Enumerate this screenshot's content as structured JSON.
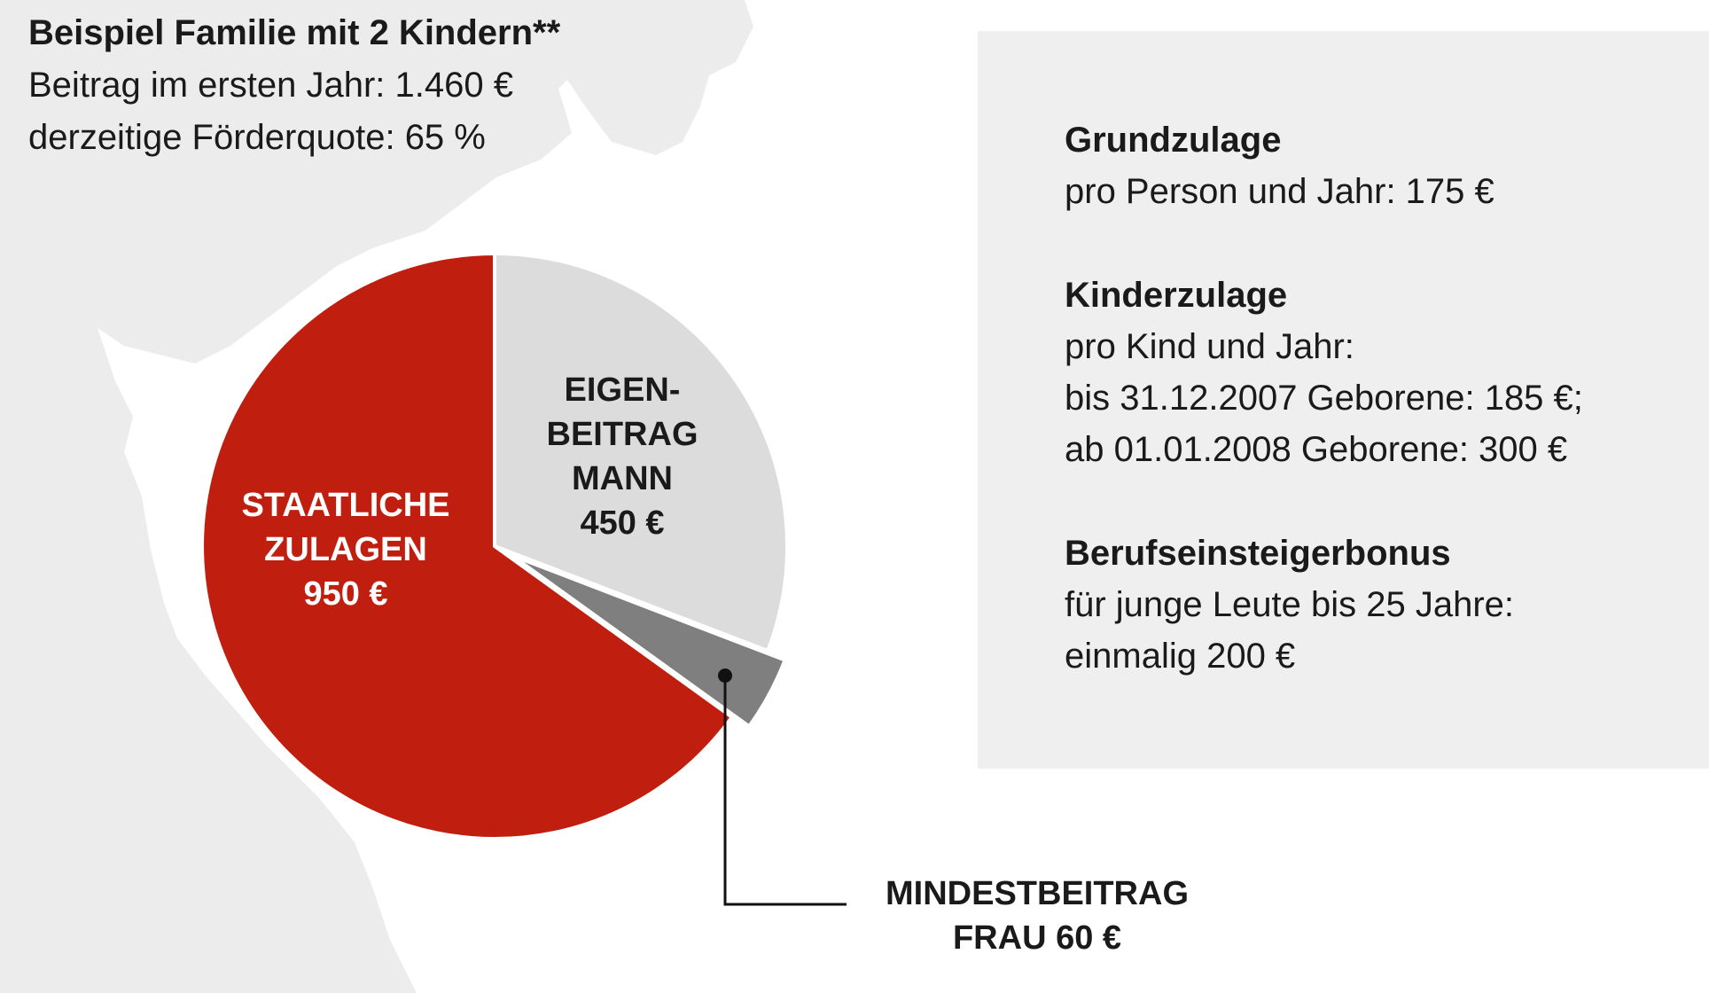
{
  "header": {
    "title": "Beispiel Familie mit 2 Kindern**",
    "contribution": "Beitrag im ersten Jahr: 1.460 €",
    "funding_rate": "derzeitige Förderquote: 65 %"
  },
  "chart_data": {
    "type": "pie",
    "total": 1460,
    "unit": "€",
    "slices": [
      {
        "label_lines": [
          "EIGEN-",
          "BEITRAG",
          "MANN",
          "450 €"
        ],
        "value": 450,
        "color": "#dcdcdc",
        "text_color": "#1a1a1a",
        "exploded": false
      },
      {
        "label_lines": [
          "MINDESTBEITRAG",
          "FRAU 60 €"
        ],
        "value": 60,
        "color": "#7f7f7f",
        "text_color": "#1a1a1a",
        "exploded": true
      },
      {
        "label_lines": [
          "STAATLICHE",
          "ZULAGEN",
          "950 €"
        ],
        "value": 950,
        "color": "#c01f10",
        "text_color": "#ffffff",
        "exploded": false
      }
    ]
  },
  "info": {
    "grundzulage": {
      "heading": "Grundzulage",
      "lines": [
        "pro Person und Jahr: 175 €"
      ]
    },
    "kinderzulage": {
      "heading": "Kinderzulage",
      "lines": [
        "pro Kind und Jahr:",
        "bis 31.12.2007 Geborene: 185 €;",
        "ab 01.01.2008 Geborene: 300 €"
      ]
    },
    "bonus": {
      "heading": "Berufseinsteigerbonus",
      "lines": [
        "für junge Leute bis 25 Jahre:",
        "einmalig 200 €"
      ]
    }
  },
  "colors": {
    "map": "#ececec",
    "info_background": "#efefef",
    "leader_line": "#111111"
  }
}
